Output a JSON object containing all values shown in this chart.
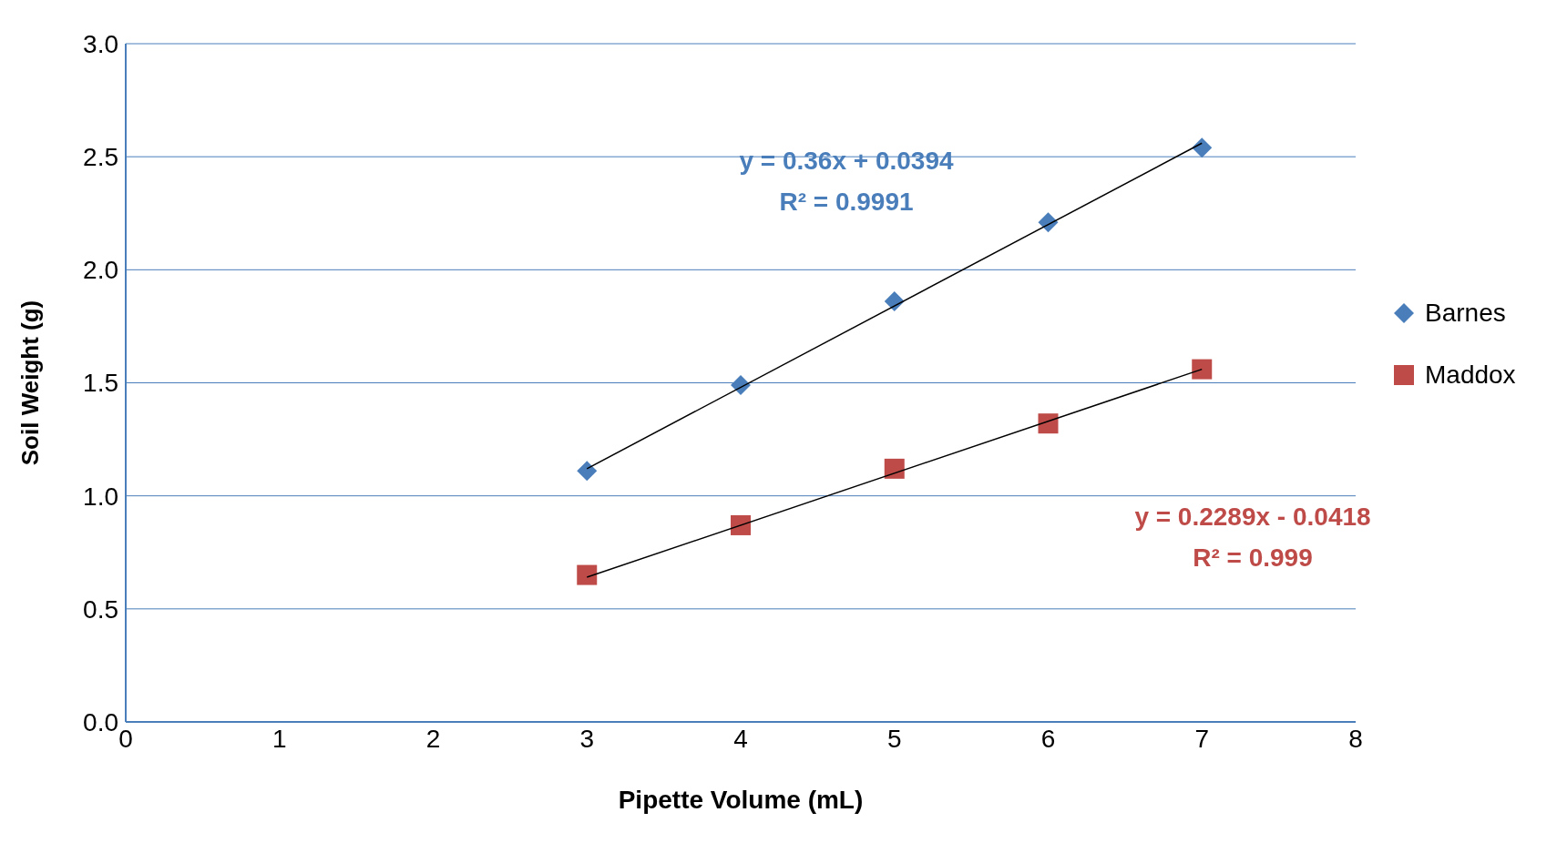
{
  "chart_data": {
    "type": "scatter",
    "xlabel": "Pipette Volume (mL)",
    "ylabel": "Soil Weight (g)",
    "xlim": [
      0,
      8
    ],
    "xticks": [
      0,
      1,
      2,
      3,
      4,
      5,
      6,
      7,
      8
    ],
    "ylim": [
      0,
      3
    ],
    "yticks": [
      {
        "value": 0,
        "label": "0.0"
      },
      {
        "value": 0.5,
        "label": "0.5"
      },
      {
        "value": 1,
        "label": "1.0"
      },
      {
        "value": 1.5,
        "label": "1.5"
      },
      {
        "value": 2,
        "label": "2.0"
      },
      {
        "value": 2.5,
        "label": "2.5"
      },
      {
        "value": 3,
        "label": "3.0"
      }
    ],
    "grid": "y",
    "legend": "right",
    "series": [
      {
        "name": "Barnes",
        "color": "#4a7ebb",
        "marker": "diamond",
        "x": [
          3,
          4,
          5,
          6,
          7
        ],
        "values": [
          1.11,
          1.49,
          1.86,
          2.21,
          2.54
        ]
      },
      {
        "name": "Maddox",
        "color": "#be4b48",
        "marker": "square",
        "x": [
          3,
          4,
          5,
          6,
          7
        ],
        "values": [
          0.65,
          0.87,
          1.12,
          1.32,
          1.56
        ]
      },
      {
        "type": "line",
        "color": "#000000",
        "marker": "none",
        "x": [
          3,
          7
        ],
        "values": [
          1.12,
          2.56
        ]
      },
      {
        "type": "line",
        "color": "#000000",
        "marker": "none",
        "x": [
          3,
          7
        ],
        "values": [
          0.64,
          1.56
        ]
      }
    ],
    "annotations": [
      "y = 0.36x + 0.0394",
      "R² = 0.9991",
      "y = 0.2289x - 0.0418",
      "R² = 0.999"
    ]
  }
}
